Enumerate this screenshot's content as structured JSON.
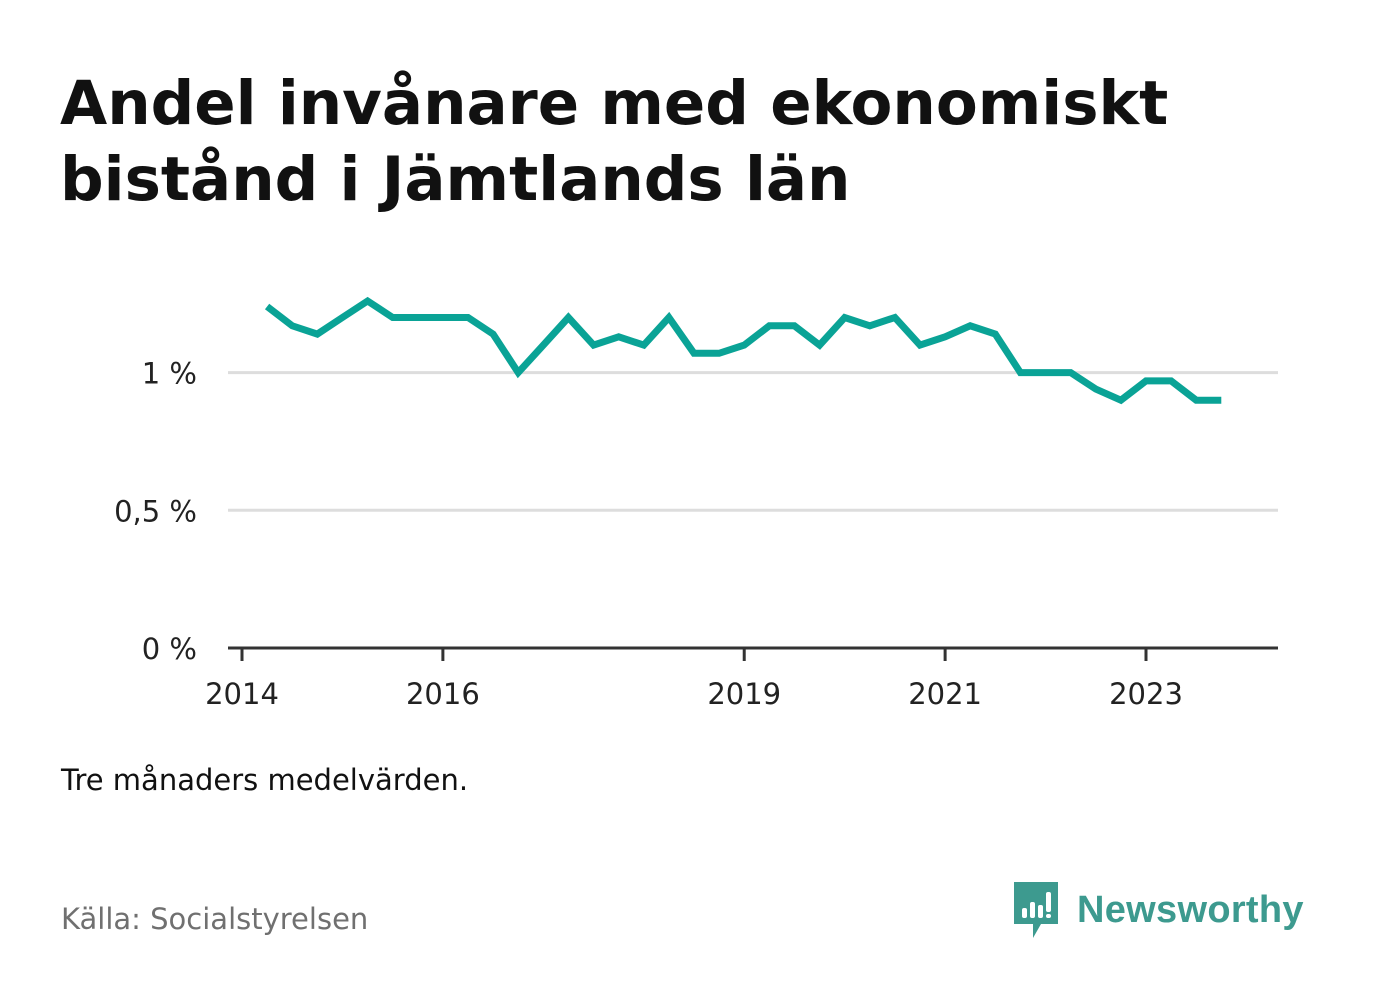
{
  "title": "Andel invånare med ekonomiskt bistånd i Jämtlands län",
  "note": "Tre månaders medelvärden.",
  "source": "Källa: Socialstyrelsen",
  "brand": {
    "name": "Newsworthy",
    "icon": "newsworthy-chart-bubble-icon"
  },
  "colors": {
    "line": "#0aa396",
    "grid": "#dddddd",
    "axis": "#333333",
    "brand": "#3d9a8f"
  },
  "chart_data": {
    "type": "line",
    "x_start": 2014.25,
    "x_step": 0.25,
    "xlim": [
      2014,
      2024.25
    ],
    "ylim": [
      0,
      1.3
    ],
    "y_ticks": [
      {
        "value": 0,
        "label": "0 %"
      },
      {
        "value": 0.5,
        "label": "0,5 %"
      },
      {
        "value": 1,
        "label": "1 %"
      }
    ],
    "x_ticks": [
      {
        "value": 2014,
        "label": "2014"
      },
      {
        "value": 2016,
        "label": "2016"
      },
      {
        "value": 2019,
        "label": "2019"
      },
      {
        "value": 2021,
        "label": "2021"
      },
      {
        "value": 2023,
        "label": "2023"
      }
    ],
    "grid": true,
    "values": [
      1.24,
      1.17,
      1.14,
      1.2,
      1.26,
      1.2,
      1.2,
      1.2,
      1.2,
      1.14,
      1.0,
      1.1,
      1.2,
      1.1,
      1.13,
      1.1,
      1.2,
      1.07,
      1.07,
      1.1,
      1.17,
      1.17,
      1.1,
      1.2,
      1.17,
      1.2,
      1.1,
      1.13,
      1.17,
      1.14,
      1.0,
      1.0,
      1.0,
      0.94,
      0.9,
      0.97,
      0.97,
      0.9,
      0.9
    ]
  }
}
